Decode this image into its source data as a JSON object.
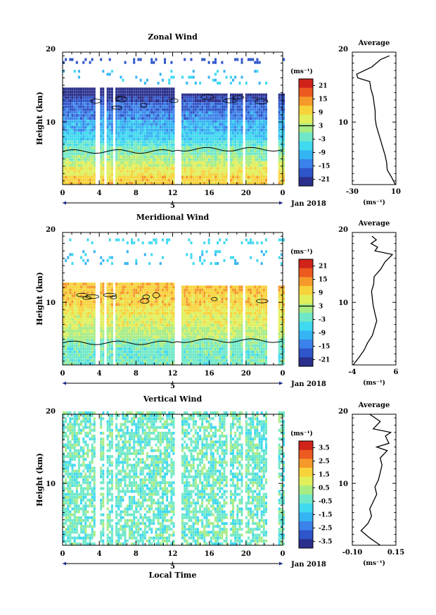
{
  "chart_data": [
    {
      "type": "heatmap",
      "title": "Zonal Wind",
      "ylabel": "Height (km)",
      "xlabel": "",
      "x_ticks": [
        "0",
        "4",
        "8",
        "12",
        "16",
        "20",
        "0"
      ],
      "xlim": [
        0,
        24
      ],
      "y_ticks": [
        "20",
        "10"
      ],
      "ylim": [
        1.5,
        19.5
      ],
      "date_label": "5",
      "date_suffix": "Jan 2018",
      "colorbar": {
        "unit": "(ms⁻¹)",
        "ticks": [
          "21",
          "15",
          "9",
          "3",
          "-3",
          "-9",
          "-15",
          "-21"
        ],
        "range": [
          -24,
          24
        ]
      },
      "profile": {
        "title": "Average",
        "unit": "(ms⁻¹)",
        "x_ticks": [
          "-30",
          "10"
        ],
        "xlim": [
          -30,
          10
        ],
        "heights": [
          1.5,
          2.5,
          3.5,
          4.5,
          5.5,
          6.5,
          7.5,
          8.5,
          9.5,
          10.5,
          11.5,
          12.5,
          13.5,
          14.5,
          15.5,
          16,
          16.5,
          17.5,
          18.5,
          19
        ],
        "values": [
          9.5,
          6,
          2,
          1.5,
          0,
          -2,
          -4,
          -6,
          -8,
          -9,
          -9,
          -10,
          -11,
          -13,
          -14,
          -25,
          -26,
          -12,
          -4,
          4
        ]
      }
    },
    {
      "type": "heatmap",
      "title": "Meridional Wind",
      "ylabel": "Height (km)",
      "xlabel": "",
      "x_ticks": [
        "0",
        "4",
        "8",
        "12",
        "16",
        "20",
        "0"
      ],
      "xlim": [
        0,
        24
      ],
      "y_ticks": [
        "20",
        "10"
      ],
      "ylim": [
        1.5,
        19.5
      ],
      "date_label": "5",
      "date_suffix": "Jan 2018",
      "colorbar": {
        "unit": "(ms⁻¹)",
        "ticks": [
          "21",
          "15",
          "9",
          "3",
          "-3",
          "-9",
          "-15",
          "-21"
        ],
        "range": [
          -24,
          24
        ]
      },
      "profile": {
        "title": "Average",
        "unit": "(ms⁻¹)",
        "x_ticks": [
          "-4",
          "6"
        ],
        "xlim": [
          -4,
          6
        ],
        "heights": [
          1.5,
          2.5,
          3.5,
          4.5,
          5.5,
          6.5,
          7.5,
          8.5,
          9.5,
          10.5,
          11.5,
          12.5,
          13.5,
          14.5,
          15.5,
          16.5,
          17,
          17.5,
          18,
          18.5,
          19
        ],
        "values": [
          -3.8,
          -2.5,
          -1.3,
          -0.5,
          0.6,
          1.1,
          1.6,
          1.2,
          0.8,
          0.6,
          0.4,
          0.9,
          1.0,
          2.5,
          3.5,
          5.2,
          1.2,
          1.8,
          0.3,
          1.5,
          0.5
        ]
      }
    },
    {
      "type": "heatmap",
      "title": "Vertical Wind",
      "ylabel": "Height (km)",
      "xlabel": "Local Time",
      "x_ticks": [
        "0",
        "4",
        "8",
        "12",
        "16",
        "20",
        "0"
      ],
      "xlim": [
        0,
        24
      ],
      "y_ticks": [
        "20",
        "10"
      ],
      "ylim": [
        1.5,
        19.5
      ],
      "date_label": "5",
      "date_suffix": "Jan 2018",
      "colorbar": {
        "unit": "(ms⁻¹)",
        "ticks": [
          "3.5",
          "2.5",
          "1.5",
          "0.5",
          "-0.5",
          "-1.5",
          "-2.5",
          "-3.5"
        ],
        "range": [
          -4,
          4
        ]
      },
      "profile": {
        "title": "Average",
        "unit": "(ms⁻¹)",
        "x_ticks": [
          "-0.10",
          "0.15"
        ],
        "xlim": [
          -0.1,
          0.15
        ],
        "heights": [
          1.5,
          2.5,
          3.5,
          4.5,
          5.5,
          6.5,
          7.5,
          8.5,
          9.5,
          10.5,
          11.5,
          12.5,
          13.5,
          14.5,
          15,
          15.5,
          16.5,
          17,
          17.5,
          18.5,
          19.5
        ],
        "values": [
          0.06,
          0.0,
          -0.05,
          -0.01,
          0.01,
          0.0,
          0.02,
          0.04,
          0.03,
          0.05,
          0.06,
          0.07,
          0.06,
          0.1,
          0.04,
          0.11,
          0.09,
          0.12,
          0.02,
          0.06,
          0.0
        ]
      }
    }
  ]
}
